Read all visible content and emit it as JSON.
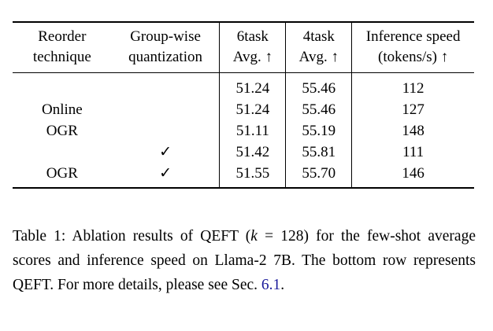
{
  "table": {
    "headers": [
      [
        "Reorder",
        "technique"
      ],
      [
        "Group-wise",
        "quantization"
      ],
      [
        "6task",
        "Avg. ↑"
      ],
      [
        "4task",
        "Avg. ↑"
      ],
      [
        "Inference speed",
        "(tokens/s) ↑"
      ]
    ],
    "rows": [
      [
        "",
        "",
        "51.24",
        "55.46",
        "112"
      ],
      [
        "Online",
        "",
        "51.24",
        "55.46",
        "127"
      ],
      [
        "OGR",
        "",
        "51.11",
        "55.19",
        "148"
      ],
      [
        "",
        "✓",
        "51.42",
        "55.81",
        "111"
      ],
      [
        "OGR",
        "✓",
        "51.55",
        "55.70",
        "146"
      ]
    ]
  },
  "caption": {
    "lead": "Table 1: Ablation results of QEFT (",
    "var_k": "k",
    "equals": " = 128) for the few-shot average scores and inference speed on Llama-2 7B. The bottom row represents QEFT. For more details, please see Sec. ",
    "ref": "6.1",
    "tail": "."
  }
}
